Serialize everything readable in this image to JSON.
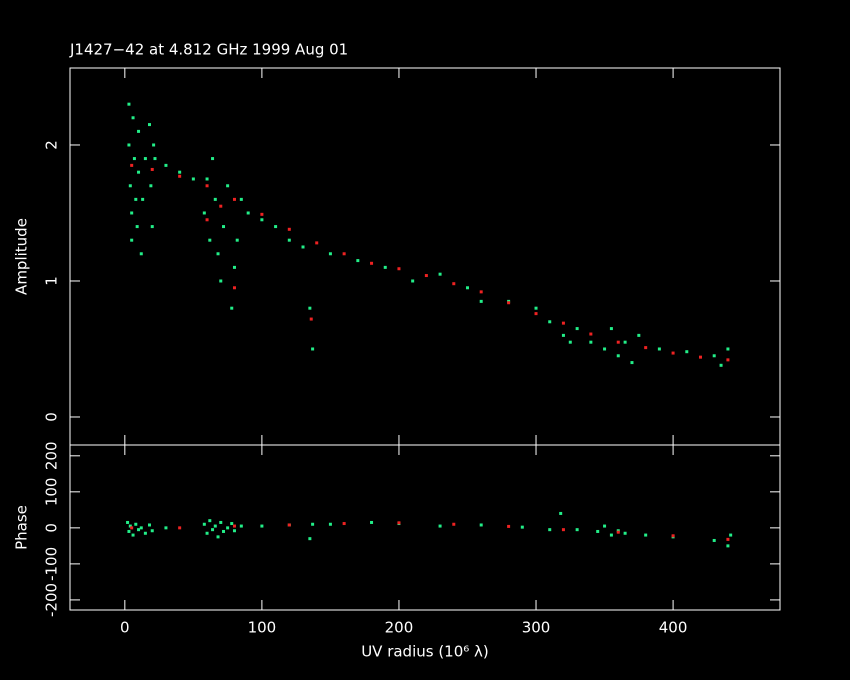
{
  "chart_data": [
    {
      "type": "scatter",
      "title": "J1427−42 at 4.812 GHz 1999 Aug 01",
      "y_label": "Amplitude",
      "xlim": [
        -40,
        478
      ],
      "xticks": [
        0,
        100,
        200,
        300,
        400
      ],
      "ylim": [
        -0.206,
        2.566
      ],
      "yticks": [
        0,
        1,
        2
      ],
      "series": [
        {
          "color": "#22ee88",
          "x": [
            3,
            3,
            4,
            5,
            5,
            6,
            7,
            8,
            9,
            10,
            10,
            12,
            13,
            15,
            18,
            19,
            20,
            21,
            22,
            30,
            40,
            50,
            58,
            60,
            62,
            64,
            66,
            68,
            70,
            72,
            75,
            78,
            80,
            82,
            85,
            90,
            100,
            110,
            120,
            130,
            135,
            137,
            150,
            170,
            190,
            210,
            230,
            250,
            260,
            280,
            300,
            310,
            320,
            325,
            330,
            340,
            350,
            355,
            360,
            365,
            370,
            375,
            390,
            410,
            430,
            435,
            440
          ],
          "values": [
            2.3,
            2.0,
            1.7,
            1.5,
            1.3,
            2.2,
            1.9,
            1.6,
            1.4,
            2.1,
            1.8,
            1.2,
            1.6,
            1.9,
            2.15,
            1.7,
            1.4,
            2.0,
            1.9,
            1.85,
            1.8,
            1.75,
            1.5,
            1.75,
            1.3,
            1.9,
            1.6,
            1.2,
            1.0,
            1.4,
            1.7,
            0.8,
            1.1,
            1.3,
            1.6,
            1.5,
            1.45,
            1.4,
            1.3,
            1.25,
            0.8,
            0.5,
            1.2,
            1.15,
            1.1,
            1.0,
            1.05,
            0.95,
            0.85,
            0.85,
            0.8,
            0.7,
            0.6,
            0.55,
            0.65,
            0.55,
            0.5,
            0.65,
            0.45,
            0.55,
            0.4,
            0.6,
            0.5,
            0.48,
            0.45,
            0.38,
            0.5
          ]
        },
        {
          "color": "#ee2222",
          "x": [
            5,
            20,
            40,
            60,
            60,
            70,
            80,
            80,
            100,
            120,
            136,
            140,
            160,
            180,
            200,
            220,
            240,
            260,
            280,
            300,
            320,
            340,
            360,
            380,
            400,
            420,
            440
          ],
          "values": [
            1.85,
            1.82,
            1.77,
            1.7,
            1.45,
            1.55,
            1.6,
            0.95,
            1.49,
            1.38,
            0.72,
            1.28,
            1.2,
            1.13,
            1.09,
            1.04,
            0.98,
            0.92,
            0.84,
            0.76,
            0.69,
            0.61,
            0.55,
            0.51,
            0.47,
            0.44,
            0.42
          ]
        }
      ]
    },
    {
      "type": "scatter",
      "y_label": "Phase",
      "x_label": "UV radius  (10⁶ λ)",
      "xlim": [
        -40,
        478
      ],
      "xticks": [
        0,
        100,
        200,
        300,
        400
      ],
      "ylim": [
        -228,
        230
      ],
      "yticks": [
        -200,
        -100,
        0,
        100,
        200
      ],
      "series": [
        {
          "color": "#22ee88",
          "x": [
            2,
            3,
            4,
            6,
            8,
            10,
            12,
            15,
            18,
            20,
            30,
            58,
            60,
            62,
            64,
            66,
            68,
            70,
            72,
            75,
            78,
            80,
            85,
            100,
            120,
            135,
            137,
            150,
            180,
            200,
            230,
            260,
            290,
            310,
            318,
            330,
            345,
            350,
            355,
            360,
            365,
            380,
            400,
            430,
            440,
            442
          ],
          "values": [
            15,
            -10,
            5,
            -20,
            10,
            -5,
            0,
            -15,
            8,
            -8,
            0,
            10,
            -15,
            20,
            -5,
            5,
            -25,
            15,
            -10,
            0,
            12,
            -8,
            5,
            5,
            8,
            -30,
            10,
            10,
            15,
            12,
            5,
            8,
            2,
            -5,
            40,
            -5,
            -10,
            5,
            -20,
            -8,
            -15,
            -20,
            -25,
            -35,
            -50,
            -20
          ]
        },
        {
          "color": "#ee2222",
          "x": [
            5,
            40,
            80,
            120,
            160,
            200,
            240,
            280,
            320,
            360,
            400,
            440
          ],
          "values": [
            0,
            0,
            5,
            8,
            12,
            14,
            10,
            4,
            -5,
            -12,
            -22,
            -32
          ]
        }
      ]
    }
  ]
}
